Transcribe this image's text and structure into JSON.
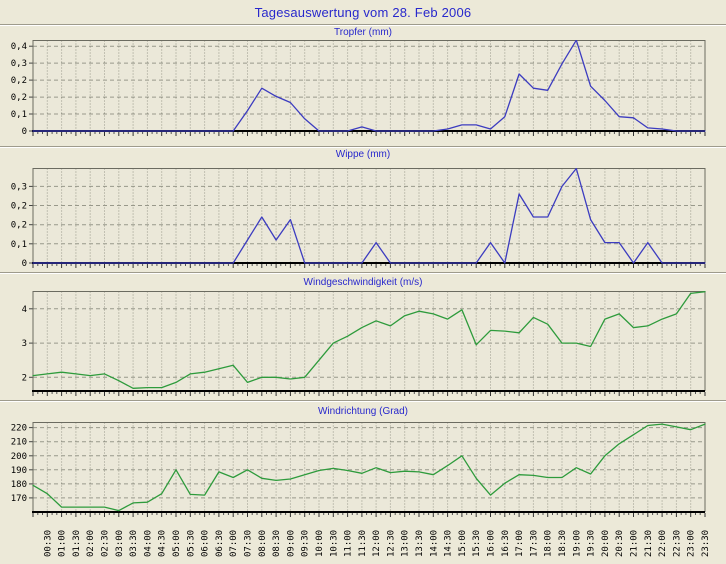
{
  "page_title": "Tagesauswertung vom 28. Feb 2006",
  "colors": {
    "background": "#ECE9D8",
    "plot_background": "#EBE8D9",
    "grid": "#98988a",
    "frame": "#6b6b60",
    "axis": "#000000",
    "title_blue": "#2828CC",
    "rain_line_blue": "#3C3CC0",
    "wind_line_green": "#2E9B3C",
    "tick_text": "#000000"
  },
  "x_axis": {
    "start": "00:00",
    "step_minutes": 30,
    "tick_labels": [
      "00:30",
      "01:00",
      "01:30",
      "02:00",
      "02:30",
      "03:00",
      "03:30",
      "04:00",
      "04:30",
      "05:00",
      "05:30",
      "06:00",
      "06:30",
      "07:00",
      "07:30",
      "08:00",
      "08:30",
      "09:00",
      "09:30",
      "10:00",
      "10:30",
      "11:00",
      "11:30",
      "12:00",
      "12:30",
      "13:00",
      "13:30",
      "14:00",
      "14:30",
      "15:00",
      "15:30",
      "16:00",
      "16:30",
      "17:00",
      "17:30",
      "18:00",
      "18:30",
      "19:00",
      "19:30",
      "20:00",
      "20:30",
      "21:00",
      "21:30",
      "22:00",
      "22:30",
      "23:00",
      "23:30"
    ]
  },
  "chart_data": [
    {
      "type": "line",
      "title": "Tropfer (mm)",
      "ylabel_unit": "mm",
      "line_color_key": "rain_line_blue",
      "grid": true,
      "legend": "none",
      "y_tick_labels": [
        "0",
        "0,1",
        "0,2",
        "0,2",
        "0,3",
        "0,4"
      ],
      "y_tick_values": [
        0,
        0.0833,
        0.1667,
        0.25,
        0.3333,
        0.4167
      ],
      "ylim": [
        0,
        0.447
      ],
      "values": [
        0,
        0,
        0,
        0,
        0,
        0,
        0,
        0,
        0,
        0,
        0,
        0,
        0,
        0,
        0,
        0.1,
        0.21,
        0.17,
        0.14,
        0.06,
        0,
        0,
        0,
        0.02,
        0,
        0,
        0,
        0,
        0,
        0.01,
        0.03,
        0.03,
        0.01,
        0.07,
        0.28,
        0.21,
        0.2,
        0.33,
        0.446,
        0.22,
        0.15,
        0.07,
        0.065,
        0.015,
        0.01,
        0,
        0,
        0
      ]
    },
    {
      "type": "line",
      "title": "Wippe (mm)",
      "ylabel_unit": "mm",
      "line_color_key": "rain_line_blue",
      "grid": true,
      "legend": "none",
      "y_tick_labels": [
        "0",
        "0,1",
        "0,2",
        "0,2",
        "0,3"
      ],
      "y_tick_values": [
        0,
        0.075,
        0.15,
        0.225,
        0.3
      ],
      "ylim": [
        0,
        0.372
      ],
      "values": [
        0,
        0,
        0,
        0,
        0,
        0,
        0,
        0,
        0,
        0,
        0,
        0,
        0,
        0,
        0,
        0.09,
        0.18,
        0.09,
        0.17,
        0,
        0,
        0,
        0,
        0,
        0.08,
        0,
        0,
        0,
        0,
        0,
        0,
        0,
        0.08,
        0,
        0.27,
        0.18,
        0.18,
        0.3,
        0.37,
        0.17,
        0.08,
        0.08,
        0,
        0.08,
        0,
        0,
        0,
        0
      ]
    },
    {
      "type": "line",
      "title": "Windgeschwindigkeit (m/s)",
      "ylabel_unit": "m/s",
      "line_color_key": "wind_line_green",
      "grid": true,
      "legend": "none",
      "y_tick_labels": [
        "2",
        "3",
        "4"
      ],
      "y_tick_values": [
        2,
        3,
        4
      ],
      "ylim": [
        1.6,
        4.52
      ],
      "values": [
        2.05,
        2.1,
        2.15,
        2.1,
        2.05,
        2.1,
        1.9,
        1.68,
        1.7,
        1.7,
        1.85,
        2.1,
        2.15,
        2.25,
        2.35,
        1.85,
        2.0,
        2.0,
        1.95,
        2.0,
        2.5,
        3.0,
        3.2,
        3.45,
        3.65,
        3.5,
        3.8,
        3.93,
        3.85,
        3.7,
        3.97,
        2.95,
        3.37,
        3.35,
        3.3,
        3.75,
        3.55,
        3.0,
        3.0,
        2.9,
        3.7,
        3.85,
        3.45,
        3.5,
        3.7,
        3.85,
        4.45,
        4.5
      ]
    },
    {
      "type": "line",
      "title": "Windrichtung (Grad)",
      "ylabel_unit": "Grad",
      "line_color_key": "wind_line_green",
      "grid": true,
      "legend": "none",
      "y_tick_labels": [
        "170",
        "180",
        "190",
        "200",
        "210",
        "220"
      ],
      "y_tick_values": [
        170,
        180,
        190,
        200,
        210,
        220
      ],
      "ylim": [
        160,
        224
      ],
      "values": [
        179,
        173,
        163.5,
        163.5,
        163.5,
        163.5,
        161,
        166.5,
        167,
        173,
        190,
        172.5,
        172,
        188.5,
        184.5,
        190,
        184,
        182.5,
        183.5,
        186.5,
        189.5,
        191,
        189.5,
        187.5,
        191.5,
        188,
        189,
        188.5,
        186.5,
        193,
        200,
        184,
        172,
        180.5,
        186.5,
        186,
        184.5,
        184.5,
        191.5,
        187,
        200,
        208.5,
        215,
        221.5,
        222.5,
        220.5,
        218.5,
        222.5
      ]
    }
  ]
}
